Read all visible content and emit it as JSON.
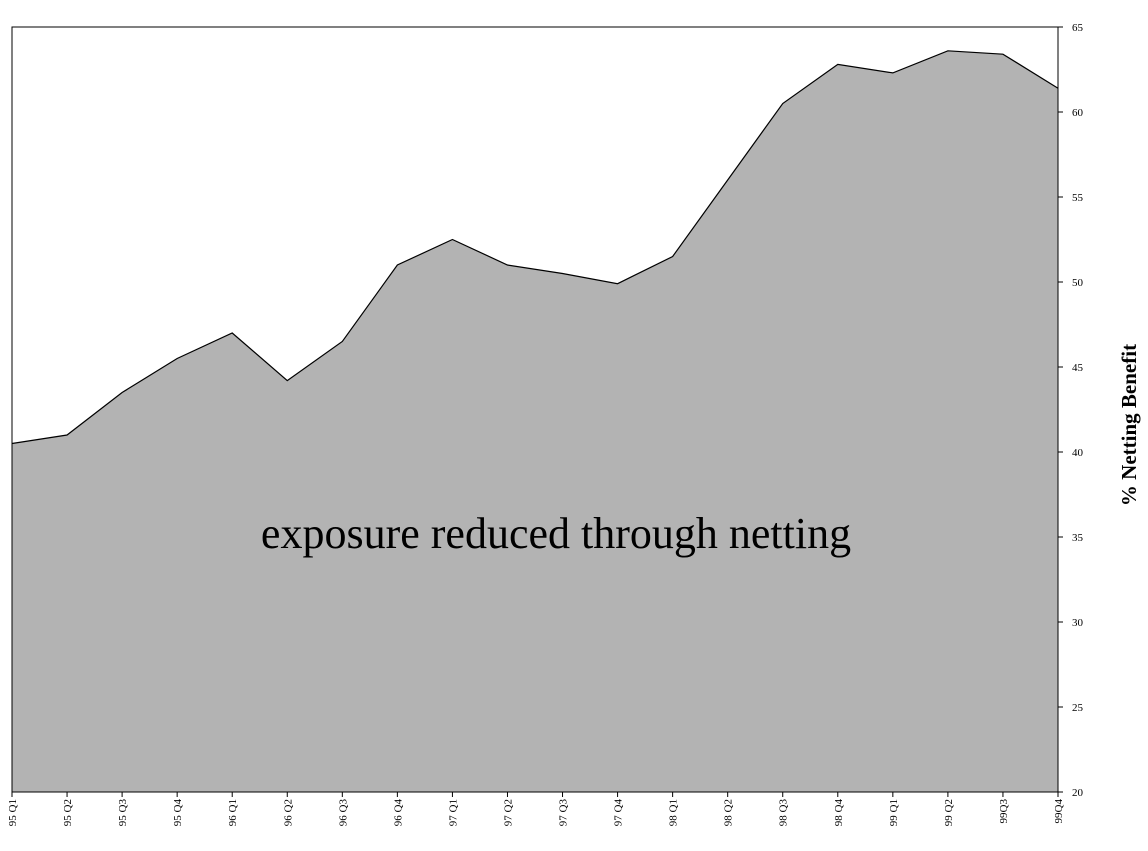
{
  "chart_data": {
    "type": "area",
    "x": [
      "95 Q1",
      "95 Q2",
      "95 Q3",
      "95 Q4",
      "96 Q1",
      "96 Q2",
      "96 Q3",
      "96 Q4",
      "97 Q1",
      "97 Q2",
      "97 Q3",
      "97 Q4",
      "98 Q1",
      "98 Q2",
      "98 Q3",
      "98 Q4",
      "99 Q1",
      "99 Q2",
      "99Q3",
      "99Q4"
    ],
    "series": [
      {
        "values": [
          40.5,
          41.0,
          43.5,
          45.5,
          47.0,
          44.2,
          46.5,
          51.0,
          52.5,
          51.0,
          50.5,
          49.9,
          51.5,
          56.0,
          60.5,
          62.8,
          62.3,
          63.6,
          63.4,
          61.4
        ],
        "color": "#b3b3b3"
      }
    ],
    "ylim": [
      20,
      65
    ],
    "yticks": [
      20,
      25,
      30,
      35,
      40,
      45,
      50,
      55,
      60,
      65
    ],
    "ylabel": "% Netting Benefit",
    "y_axis_position": "right",
    "annotation": "exposure reduced through netting",
    "grid": false,
    "legend": "none"
  }
}
